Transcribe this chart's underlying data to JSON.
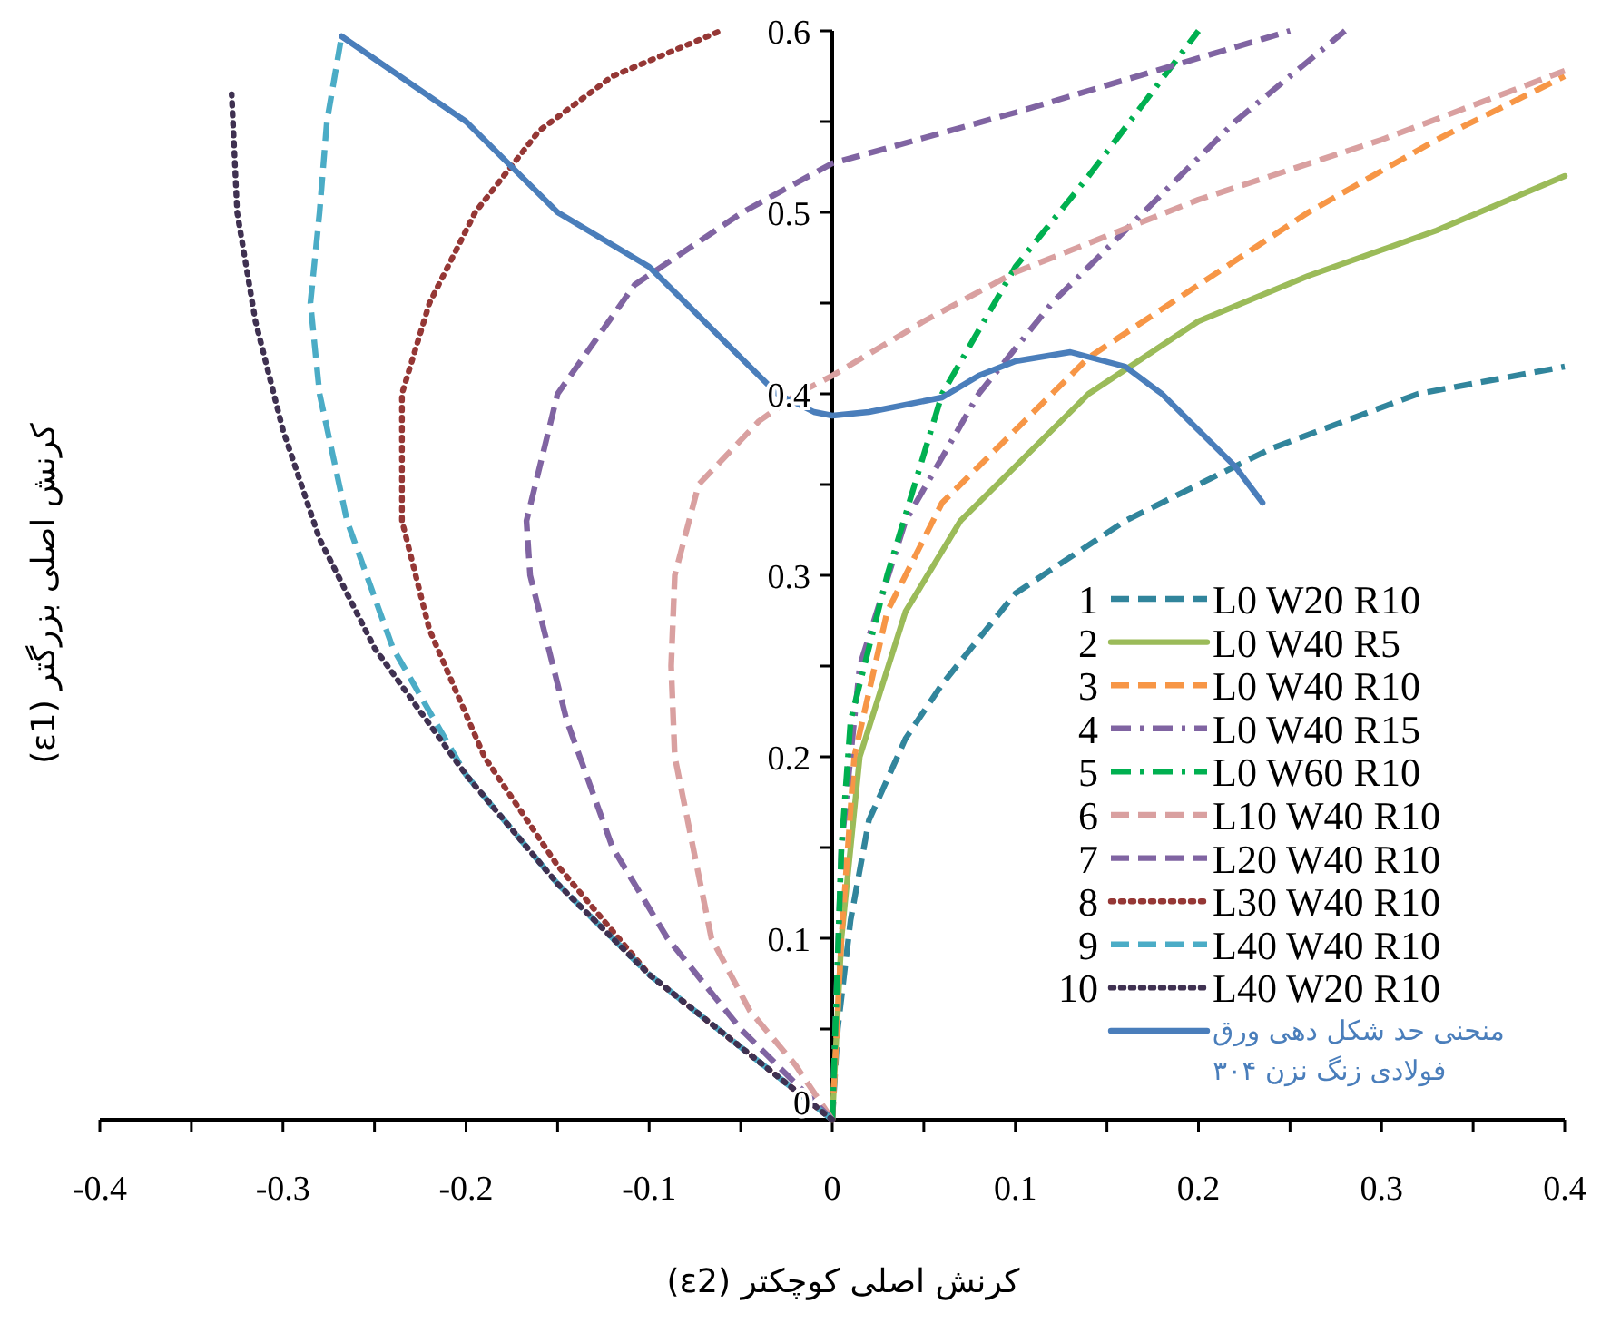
{
  "chart_data": {
    "type": "line",
    "xlabel": "کرنش اصلی کوچکتر (ε2)",
    "ylabel": "کرنش اصلی بزرگتر (ε1)",
    "xlim": [
      -0.4,
      0.4
    ],
    "ylim": [
      0,
      0.6
    ],
    "xticks": [
      -0.4,
      -0.3,
      -0.2,
      -0.1,
      0,
      0.1,
      0.2,
      0.3,
      0.4
    ],
    "yticks": [
      0,
      0.1,
      0.2,
      0.3,
      0.4,
      0.5,
      0.6
    ],
    "legend": "bottom right",
    "grid": false,
    "annotations": [
      "1",
      "2",
      "3",
      "4",
      "5",
      "6",
      "7",
      "8",
      "9",
      "10"
    ],
    "series": [
      {
        "name": "L0 W20 R10",
        "color": "#31859c",
        "line_style": "dashed",
        "x": [
          0,
          0.003,
          0.01,
          0.02,
          0.04,
          0.06,
          0.1,
          0.16,
          0.24,
          0.32,
          0.4
        ],
        "values": [
          0,
          0.05,
          0.11,
          0.165,
          0.21,
          0.24,
          0.29,
          0.33,
          0.37,
          0.4,
          0.415
        ]
      },
      {
        "name": "L0 W40 R5",
        "color": "#9bbb59",
        "line_style": "solid",
        "x": [
          0,
          0.005,
          0.015,
          0.04,
          0.07,
          0.1,
          0.14,
          0.2,
          0.26,
          0.33,
          0.4
        ],
        "values": [
          0,
          0.1,
          0.2,
          0.28,
          0.33,
          0.36,
          0.4,
          0.44,
          0.465,
          0.49,
          0.52
        ]
      },
      {
        "name": "L0 W40 R10",
        "color": "#f79646",
        "line_style": "dashed",
        "x": [
          0,
          0.005,
          0.012,
          0.03,
          0.06,
          0.1,
          0.14,
          0.2,
          0.26,
          0.33,
          0.4
        ],
        "values": [
          0,
          0.1,
          0.2,
          0.28,
          0.34,
          0.38,
          0.42,
          0.46,
          0.5,
          0.54,
          0.575
        ]
      },
      {
        "name": "L0 W40 R15",
        "color": "#8064a2",
        "line_style": "dashdot",
        "x": [
          0,
          0.005,
          0.015,
          0.04,
          0.08,
          0.12,
          0.17,
          0.22,
          0.28
        ],
        "values": [
          0,
          0.15,
          0.25,
          0.33,
          0.4,
          0.45,
          0.5,
          0.55,
          0.6
        ]
      },
      {
        "name": "L0 W60 R10",
        "color": "#00b050",
        "line_style": "dashdot",
        "x": [
          0,
          0.005,
          0.01,
          0.03,
          0.06,
          0.1,
          0.14,
          0.2
        ],
        "values": [
          0,
          0.15,
          0.22,
          0.3,
          0.4,
          0.47,
          0.52,
          0.6
        ]
      },
      {
        "name": "L10 W40 R10",
        "color": "#d9a0a0",
        "line_style": "dashed",
        "x": [
          0,
          -0.02,
          -0.045,
          -0.066,
          -0.086,
          -0.088,
          -0.086,
          -0.073,
          -0.04,
          -0.019,
          0,
          0.05,
          0.1,
          0.2,
          0.3,
          0.4
        ],
        "values": [
          0,
          0.03,
          0.06,
          0.1,
          0.2,
          0.25,
          0.3,
          0.35,
          0.385,
          0.4,
          0.41,
          0.44,
          0.467,
          0.507,
          0.54,
          0.578
        ]
      },
      {
        "name": "L20 W40 R10",
        "color": "#8064a2",
        "line_style": "dashed",
        "x": [
          0,
          -0.05,
          -0.09,
          -0.12,
          -0.145,
          -0.165,
          -0.167,
          -0.15,
          -0.108,
          -0.049,
          0,
          0.1,
          0.2,
          0.25
        ],
        "values": [
          0,
          0.05,
          0.1,
          0.15,
          0.22,
          0.3,
          0.33,
          0.4,
          0.46,
          0.5,
          0.527,
          0.555,
          0.585,
          0.6
        ]
      },
      {
        "name": "L30 W40 R10",
        "color": "#953735",
        "line_style": "dotted",
        "x": [
          0,
          -0.05,
          -0.1,
          -0.15,
          -0.19,
          -0.22,
          -0.235,
          -0.235,
          -0.22,
          -0.195,
          -0.16,
          -0.12,
          -0.061
        ],
        "values": [
          0,
          0.04,
          0.08,
          0.14,
          0.2,
          0.27,
          0.33,
          0.4,
          0.45,
          0.5,
          0.545,
          0.575,
          0.6
        ]
      },
      {
        "name": "L40 W40 R10",
        "color": "#4bacc6",
        "line_style": "dashed",
        "x": [
          0,
          -0.05,
          -0.1,
          -0.15,
          -0.2,
          -0.24,
          -0.265,
          -0.28,
          -0.285,
          -0.28,
          -0.276,
          -0.268
        ],
        "values": [
          0,
          0.04,
          0.08,
          0.13,
          0.19,
          0.26,
          0.33,
          0.4,
          0.45,
          0.5,
          0.55,
          0.597
        ]
      },
      {
        "name": "L40 W20 R10",
        "color": "#3f3151",
        "line_style": "dotted",
        "x": [
          0,
          -0.05,
          -0.1,
          -0.15,
          -0.2,
          -0.25,
          -0.28,
          -0.3,
          -0.315,
          -0.325,
          -0.328
        ],
        "values": [
          0,
          0.04,
          0.08,
          0.13,
          0.19,
          0.26,
          0.32,
          0.38,
          0.44,
          0.5,
          0.565
        ]
      },
      {
        "name": "منحنی حد شکل دهی ورق فولادی زنگ نزن ۳۰۴",
        "color": "#4a7ebb",
        "line_style": "solid",
        "x": [
          -0.268,
          -0.2,
          -0.15,
          -0.1,
          -0.06,
          -0.03,
          -0.01,
          0,
          0.02,
          0.06,
          0.08,
          0.1,
          0.13,
          0.16,
          0.18,
          0.2,
          0.22,
          0.235
        ],
        "values": [
          0.597,
          0.55,
          0.5,
          0.47,
          0.43,
          0.4,
          0.39,
          0.388,
          0.39,
          0.398,
          0.41,
          0.418,
          0.423,
          0.415,
          0.4,
          0.38,
          0.36,
          0.34
        ]
      }
    ]
  }
}
